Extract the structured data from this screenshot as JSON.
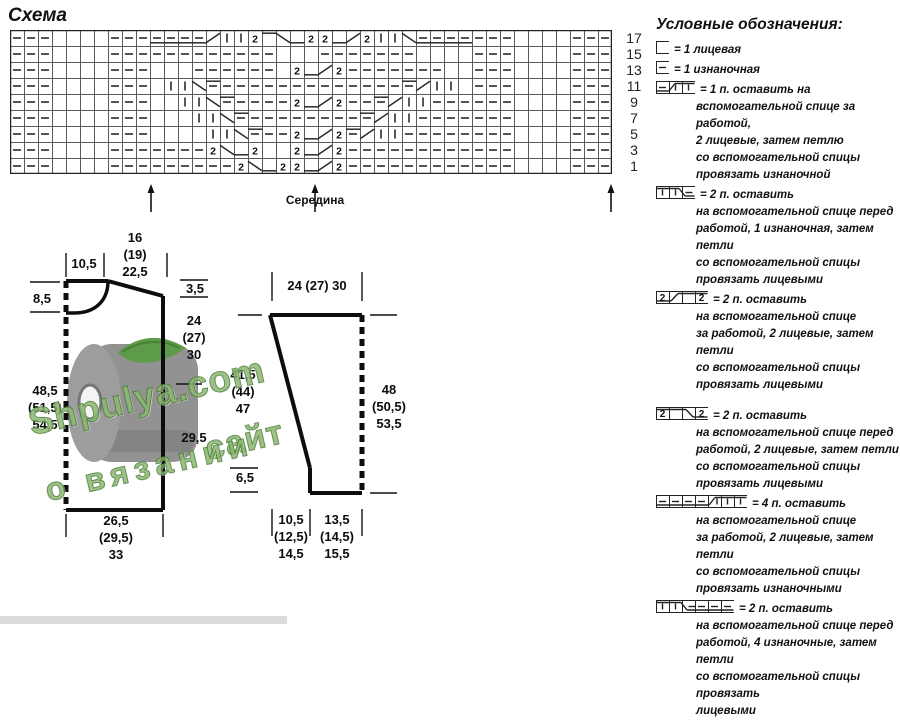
{
  "page": {
    "title": "Схема"
  },
  "colors": {
    "ink": "#111111",
    "watermark_green": "#8cb873",
    "watermark_outline": "#4e7d3a",
    "strip_gray": "#dcdcdc"
  },
  "chart": {
    "columns": 43,
    "row_numbers": [
      "17",
      "15",
      "13",
      "11",
      "9",
      "7",
      "5",
      "3",
      "1"
    ],
    "center_label": "Середина",
    "rows": [
      "---....---ddddr||2hfu22ur2||fdddd---....---",
      "---....------------...-------....---....---",
      "---....---...------.2ur2-------..---....---",
      "---....---.||f=-------------=r||.---....---",
      "---....---..||f=----2ur2--=r||------....---",
      "---....---...||f=--------=r||-------....---",
      "---....---....||f=--2ur2=r||--------....---",
      "---....-------2fu2..2ur2------------....---",
      "---....---------2fu22ur2------------....---"
    ]
  },
  "schematics": {
    "body": {
      "top_half": "10,5",
      "top_neck": "16\n(19)\n22,5",
      "neck_depth": "8,5",
      "shoulder": "3,5",
      "armhole": "24\n(27)\n30",
      "side": "29,5",
      "height": "48,5\n(51,5)\n54,5",
      "bottom": "26,5\n(29,5)\n33"
    },
    "sleeve": {
      "top": "24 (27) 30",
      "left_height": "41,5\n(44)\n47",
      "right_height": "48\n(50,5)\n53,5",
      "cuff": "6,5",
      "bottom_left": "10,5\n(12,5)\n14,5",
      "bottom_right": "13,5\n(14,5)\n15,5"
    }
  },
  "watermark": {
    "line1": "Shpulya.com",
    "line2": "сайт",
    "line3": "о вязании"
  },
  "legend": {
    "heading": "Условные обозначения:",
    "items": [
      {
        "symbol": "knit",
        "text": "= 1 лицевая"
      },
      {
        "symbol": "purl",
        "text": "= 1 изнаночная"
      },
      {
        "symbol": "cable3-back",
        "text": "= 1 п. оставить на\nвспомогательной спице за работой,\n2 лицевые, затем петлю\nсо вспомогательной спицы\nпровязать изнаночной"
      },
      {
        "symbol": "cable3-front",
        "text": "= 2 п. оставить\nна вспомогательной спице перед\nработой, 1 изнаночная, затем петли\nсо вспомогательной спицы\nпровязать лицевыми"
      },
      {
        "symbol": "cable4-back",
        "text": "= 2 п. оставить\nна вспомогательной спице\nза работой, 2 лицевые, затем петли\nсо вспомогательной спицы\nпровязать лицевыми"
      },
      {
        "symbol": "cable4-front",
        "text": "= 2 п. оставить\nна вспомогательной спице перед\nработой, 2 лицевые, затем петли\nсо вспомогательной спицы\nпровязать лицевыми"
      },
      {
        "symbol": "cable7-back",
        "text": "= 4 п. оставить\nна вспомогательной спице\nза работой, 2 лицевые, затем петли\nсо вспомогательной спицы\nпровязать изнаночными"
      },
      {
        "symbol": "cable6-front",
        "text": "= 2 п. оставить\nна вспомогательной спице перед\nработой, 4 изнаночные, затем петли\nсо вспомогательной спицы провязать\nлицевыми"
      }
    ]
  }
}
